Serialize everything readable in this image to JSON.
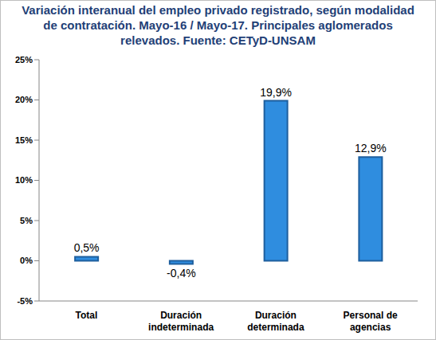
{
  "chart_data": {
    "type": "bar",
    "title": "Variación interanual del empleo privado registrado, según modalidad de contratación.  Mayo-16 / Mayo-17. Principales aglomerados relevados. Fuente: CETyD-UNSAM",
    "categories": [
      "Total",
      "Duración indeterminada",
      "Duración determinada",
      "Personal de agencias"
    ],
    "values": [
      0.5,
      -0.4,
      19.9,
      12.9
    ],
    "value_labels": [
      "0,5%",
      "-0,4%",
      "19,9%",
      "12,9%"
    ],
    "color": "#2f8ddf",
    "ylim": [
      -5,
      25
    ],
    "yticks": [
      {
        "value": -5,
        "label": "-5%"
      },
      {
        "value": 0,
        "label": "0%"
      },
      {
        "value": 5,
        "label": "5%"
      },
      {
        "value": 10,
        "label": "10%"
      },
      {
        "value": 15,
        "label": "15%"
      },
      {
        "value": 20,
        "label": "20%"
      },
      {
        "value": 25,
        "label": "25%"
      }
    ],
    "grid": false,
    "data_labels": true
  }
}
